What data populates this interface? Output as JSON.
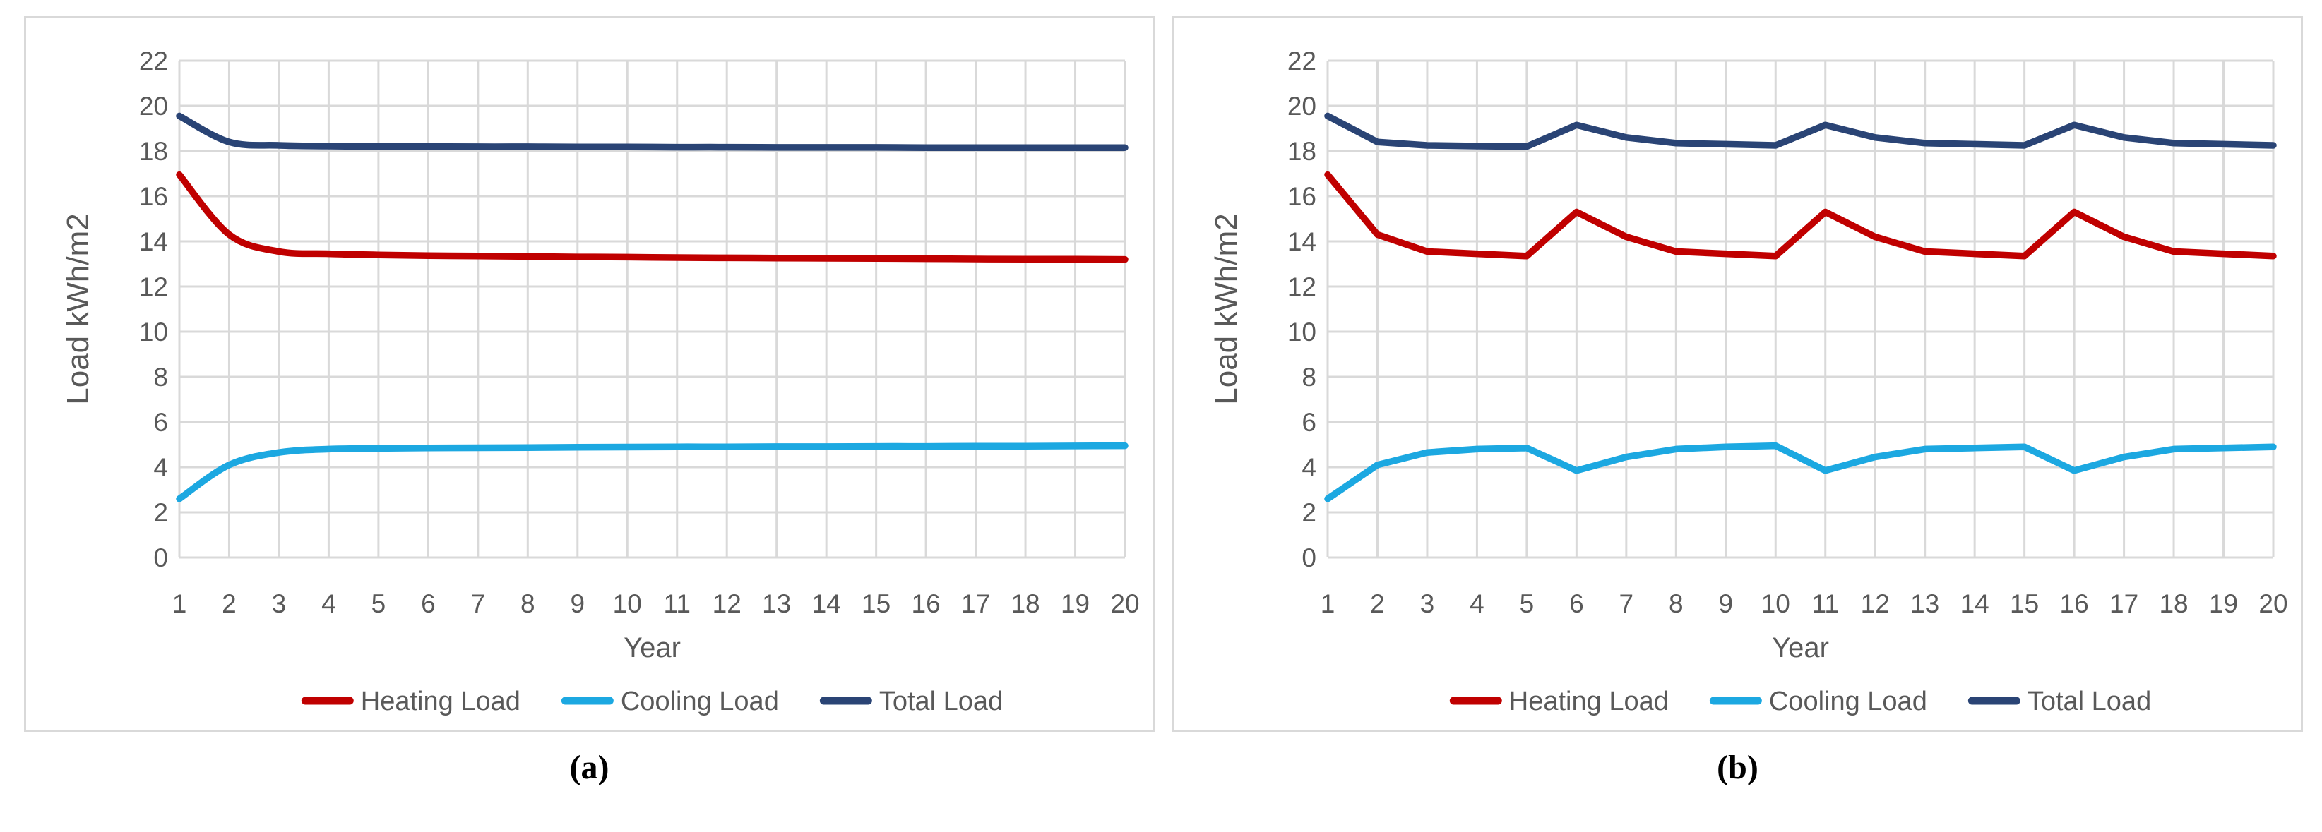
{
  "figure": {
    "background": "#ffffff",
    "captions": [
      "(a)",
      "(b)"
    ]
  },
  "palette": {
    "grid": "#D9D9D9",
    "panel_border": "#D9D9D9",
    "axis_text": "#595959",
    "caption_text": "#000000",
    "heating": "#C00000",
    "cooling": "#1CA8E1",
    "total": "#2A4475"
  },
  "chart_data": [
    {
      "id": "a",
      "caption": "(a)",
      "type": "line",
      "smooth": true,
      "grid": true,
      "legend_position": "bottom",
      "xlabel": "Year",
      "ylabel": "Load kWh/m2",
      "ylim": [
        0,
        22
      ],
      "ytick_step": 2,
      "categories": [
        1,
        2,
        3,
        4,
        5,
        6,
        7,
        8,
        9,
        10,
        11,
        12,
        13,
        14,
        15,
        16,
        17,
        18,
        19,
        20
      ],
      "series": [
        {
          "name": "Heating Load",
          "color": "#C00000",
          "values": [
            16.95,
            14.3,
            13.55,
            13.45,
            13.4,
            13.37,
            13.35,
            13.33,
            13.31,
            13.3,
            13.28,
            13.27,
            13.26,
            13.25,
            13.24,
            13.23,
            13.22,
            13.21,
            13.21,
            13.2
          ]
        },
        {
          "name": "Cooling Load",
          "color": "#1CA8E1",
          "values": [
            2.6,
            4.1,
            4.65,
            4.8,
            4.83,
            4.85,
            4.86,
            4.87,
            4.88,
            4.89,
            4.9,
            4.9,
            4.91,
            4.91,
            4.92,
            4.92,
            4.93,
            4.93,
            4.94,
            4.95
          ]
        },
        {
          "name": "Total Load",
          "color": "#2A4475",
          "values": [
            19.55,
            18.4,
            18.25,
            18.22,
            18.2,
            18.2,
            18.19,
            18.19,
            18.18,
            18.18,
            18.17,
            18.17,
            18.16,
            18.16,
            18.16,
            18.15,
            18.15,
            18.15,
            18.15,
            18.15
          ]
        }
      ]
    },
    {
      "id": "b",
      "caption": "(b)",
      "type": "line",
      "smooth": false,
      "grid": true,
      "legend_position": "bottom",
      "xlabel": "Year",
      "ylabel": "Load kWh/m2",
      "ylim": [
        0,
        22
      ],
      "ytick_step": 2,
      "categories": [
        1,
        2,
        3,
        4,
        5,
        6,
        7,
        8,
        9,
        10,
        11,
        12,
        13,
        14,
        15,
        16,
        17,
        18,
        19,
        20
      ],
      "series": [
        {
          "name": "Heating Load",
          "color": "#C00000",
          "values": [
            16.95,
            14.3,
            13.55,
            13.45,
            13.35,
            15.3,
            14.2,
            13.55,
            13.45,
            13.35,
            15.3,
            14.2,
            13.55,
            13.45,
            13.35,
            15.3,
            14.2,
            13.55,
            13.45,
            13.35
          ]
        },
        {
          "name": "Cooling Load",
          "color": "#1CA8E1",
          "values": [
            2.6,
            4.1,
            4.65,
            4.8,
            4.85,
            3.85,
            4.45,
            4.8,
            4.9,
            4.95,
            3.85,
            4.45,
            4.8,
            4.85,
            4.9,
            3.85,
            4.45,
            4.8,
            4.85,
            4.9
          ]
        },
        {
          "name": "Total Load",
          "color": "#2A4475",
          "values": [
            19.55,
            18.4,
            18.25,
            18.22,
            18.2,
            19.15,
            18.6,
            18.35,
            18.3,
            18.25,
            19.15,
            18.6,
            18.35,
            18.3,
            18.25,
            19.15,
            18.6,
            18.35,
            18.3,
            18.25
          ]
        }
      ]
    }
  ]
}
